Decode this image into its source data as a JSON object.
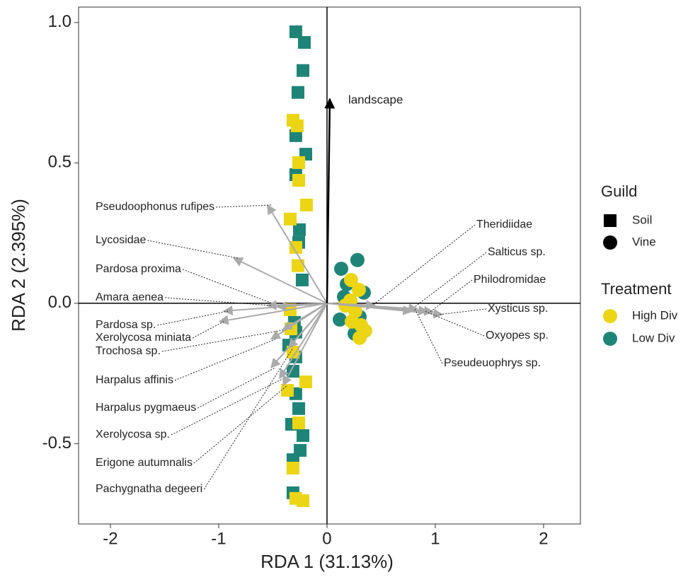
{
  "chart_data": {
    "type": "biplot",
    "x_label": "RDA 1 (31.13%)",
    "y_label": "RDA 2 (2.395%)",
    "xlim": [
      -2.294,
      2.34
    ],
    "ylim": [
      -0.786,
      1.055
    ],
    "xticks": [
      -2,
      -1,
      0,
      1,
      2
    ],
    "yticks": [
      {
        "value": -0.5,
        "label": "-0.5"
      },
      {
        "value": 0,
        "label": "0.0"
      },
      {
        "value": 0.5,
        "label": "0.5"
      },
      {
        "value": 1,
        "label": "1.0"
      }
    ],
    "legend": {
      "guild": {
        "title": "Guild",
        "items": [
          {
            "name": "Soil",
            "shape": "square"
          },
          {
            "name": "Vine",
            "shape": "circle"
          }
        ]
      },
      "treatment": {
        "title": "Treatment",
        "items": [
          {
            "name": "High Div",
            "color": "#ecd514"
          },
          {
            "name": "Low Div",
            "color": "#1f8478"
          }
        ]
      }
    },
    "series": [
      {
        "shape": "square",
        "color": "#1f8478",
        "x": [
          -0.288,
          -0.209,
          -0.222,
          -0.268,
          -0.288,
          -0.196,
          -0.288,
          -0.255,
          -0.261,
          -0.229,
          -0.301,
          -0.288,
          -0.353,
          -0.288,
          -0.314,
          -0.288,
          -0.261,
          -0.327,
          -0.222,
          -0.248,
          -0.314,
          -0.314
        ],
        "y": [
          0.967,
          0.929,
          0.829,
          0.751,
          0.597,
          0.531,
          0.458,
          0.262,
          0.217,
          0.083,
          -0.068,
          -0.103,
          -0.149,
          -0.191,
          -0.242,
          -0.322,
          -0.375,
          -0.431,
          -0.471,
          -0.524,
          -0.557,
          -0.675
        ]
      },
      {
        "shape": "square",
        "color": "#ecd514",
        "x": [
          -0.314,
          -0.275,
          -0.261,
          -0.261,
          -0.19,
          -0.34,
          -0.288,
          -0.268,
          -0.34,
          -0.333,
          -0.314,
          -0.366,
          -0.196,
          -0.261,
          -0.314,
          -0.288,
          -0.222
        ],
        "y": [
          0.652,
          0.632,
          0.501,
          0.438,
          0.35,
          0.3,
          0.199,
          0.134,
          -0.023,
          -0.091,
          -0.174,
          -0.31,
          -0.28,
          -0.426,
          -0.587,
          -0.695,
          -0.703
        ]
      },
      {
        "shape": "circle",
        "color": "#1f8478",
        "x": [
          0.281,
          0.131,
          0.183,
          0.157,
          0.34,
          0.118,
          0.301,
          0.255,
          0.307
        ],
        "y": [
          0.154,
          0.123,
          0.068,
          0.023,
          0.038,
          -0.058,
          -0.048,
          -0.108,
          -0.113
        ]
      },
      {
        "shape": "circle",
        "color": "#ecd514",
        "x": [
          0.222,
          0.294,
          0.216,
          0.261,
          0.314,
          0.353,
          0.301,
          0.229,
          0.17
        ],
        "y": [
          0.083,
          0.048,
          0.01,
          -0.028,
          -0.078,
          -0.098,
          -0.123,
          -0.065,
          -0.008
        ]
      }
    ],
    "species_color": "#aaaaaa",
    "species": [
      {
        "name": "Pseudoophonus rufipes",
        "x": -0.549,
        "y": 0.35
      },
      {
        "name": "Lycosidae",
        "x": -0.863,
        "y": 0.161
      },
      {
        "name": "Pardosa proxima",
        "x": -0.458,
        "y": -0.013
      },
      {
        "name": "Amara aenea",
        "x": -0.549,
        "y": -0.008
      },
      {
        "name": "Pardosa sp.",
        "x": -0.954,
        "y": -0.028
      },
      {
        "name": "Xerolycosa miniata",
        "x": -0.993,
        "y": -0.065
      },
      {
        "name": "Trochosa sp.",
        "x": -0.405,
        "y": -0.093
      },
      {
        "name": "Harpalus affinis",
        "x": -0.516,
        "y": -0.128
      },
      {
        "name": "Harpalus pygmaeus",
        "x": -0.516,
        "y": -0.229
      },
      {
        "name": "Xerolycosa sp.",
        "x": -0.438,
        "y": -0.267
      },
      {
        "name": "Erigone autumnalis",
        "x": -0.405,
        "y": -0.292
      },
      {
        "name": "Pachygnatha degeeri",
        "x": -0.353,
        "y": -0.159
      },
      {
        "name": "Theridiidae",
        "x": 0.444,
        "y": -0.008
      },
      {
        "name": "Salticus sp.",
        "x": 0.784,
        "y": -0.028
      },
      {
        "name": "Philodromidae",
        "x": 0.98,
        "y": -0.03
      },
      {
        "name": "Xysticus sp.",
        "x": 1.065,
        "y": -0.04
      },
      {
        "name": "Oxyopes sp.",
        "x": 0.928,
        "y": -0.028
      },
      {
        "name": "Pseudeuophrys sp.",
        "x": 0.837,
        "y": -0.02
      }
    ],
    "environment": {
      "name": "landscape",
      "x": 0.026,
      "y": 0.728,
      "color": "#000000"
    }
  }
}
